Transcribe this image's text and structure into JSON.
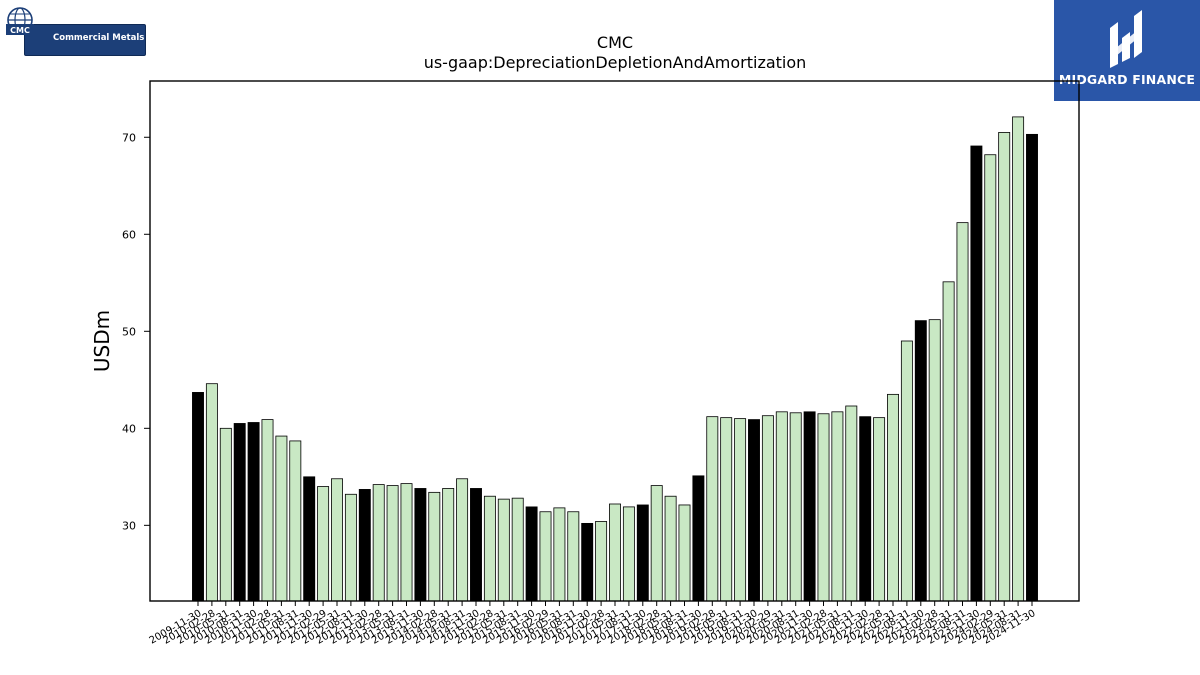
{
  "branding": {
    "left_logo_text": "CMC",
    "left_logo_name": "Commercial Metals",
    "right_logo_text": "MIDGARD FINANCE",
    "right_logo_bg": "#2a56a8",
    "left_logo_bg": "#1c3f78"
  },
  "chart_data": {
    "type": "bar",
    "title": "CMC",
    "subtitle": "us-gaap:DepreciationDepletionAndAmortization",
    "ylabel": "USDm",
    "xlabel": "",
    "ylim": [
      22.2,
      75.8
    ],
    "yticks": [
      30,
      40,
      50,
      60,
      70
    ],
    "colors": {
      "annual": "#000000",
      "quarterly": "#c9e8c4",
      "edge": "#000000"
    },
    "categories": [
      "2009-11-30",
      "2010-02-28",
      "2010-05-31",
      "2010-08-31",
      "2010-11-30",
      "2011-02-28",
      "2011-05-31",
      "2011-08-31",
      "2011-11-30",
      "2012-02-29",
      "2012-05-31",
      "2012-08-31",
      "2012-11-30",
      "2013-02-28",
      "2013-05-31",
      "2013-08-31",
      "2013-11-30",
      "2014-02-28",
      "2014-05-31",
      "2014-08-31",
      "2014-11-30",
      "2015-02-28",
      "2015-05-31",
      "2015-08-31",
      "2015-11-30",
      "2016-02-29",
      "2016-05-31",
      "2016-08-31",
      "2016-11-30",
      "2017-02-28",
      "2017-05-31",
      "2017-08-31",
      "2017-11-30",
      "2018-02-28",
      "2018-05-31",
      "2018-08-31",
      "2018-11-30",
      "2019-02-28",
      "2019-05-31",
      "2019-08-31",
      "2019-11-30",
      "2020-02-29",
      "2020-05-31",
      "2020-08-31",
      "2020-11-30",
      "2021-02-28",
      "2021-05-31",
      "2021-08-31",
      "2021-11-30",
      "2022-02-28",
      "2022-05-31",
      "2022-08-31",
      "2022-11-30",
      "2023-02-28",
      "2023-05-31",
      "2023-08-31",
      "2023-11-30",
      "2024-02-29",
      "2024-05-31",
      "2024-08-31",
      "2024-11-30"
    ],
    "values": [
      43.7,
      44.6,
      40.0,
      40.5,
      40.6,
      40.9,
      39.2,
      38.7,
      35.0,
      34.0,
      34.8,
      33.2,
      33.7,
      34.2,
      34.1,
      34.3,
      33.8,
      33.4,
      33.8,
      34.8,
      33.8,
      33.0,
      32.7,
      32.8,
      31.9,
      31.4,
      31.8,
      31.4,
      30.2,
      30.4,
      32.2,
      31.9,
      32.1,
      34.1,
      33.0,
      32.1,
      35.1,
      41.2,
      41.1,
      41.0,
      40.9,
      41.3,
      41.7,
      41.6,
      41.7,
      41.5,
      41.7,
      42.3,
      41.2,
      41.1,
      43.5,
      49.0,
      51.1,
      51.2,
      55.1,
      61.2,
      69.1,
      68.2,
      70.5,
      72.1,
      70.3
    ],
    "annual_flags": [
      true,
      false,
      false,
      true,
      true,
      false,
      false,
      false,
      true,
      false,
      false,
      false,
      true,
      false,
      false,
      false,
      true,
      false,
      false,
      false,
      true,
      false,
      false,
      false,
      true,
      false,
      false,
      false,
      true,
      false,
      false,
      false,
      true,
      false,
      false,
      false,
      true,
      false,
      false,
      false,
      true,
      false,
      false,
      false,
      true,
      false,
      false,
      false,
      true,
      false,
      false,
      false,
      true,
      false,
      false,
      false,
      true,
      false,
      false,
      false,
      true
    ]
  }
}
